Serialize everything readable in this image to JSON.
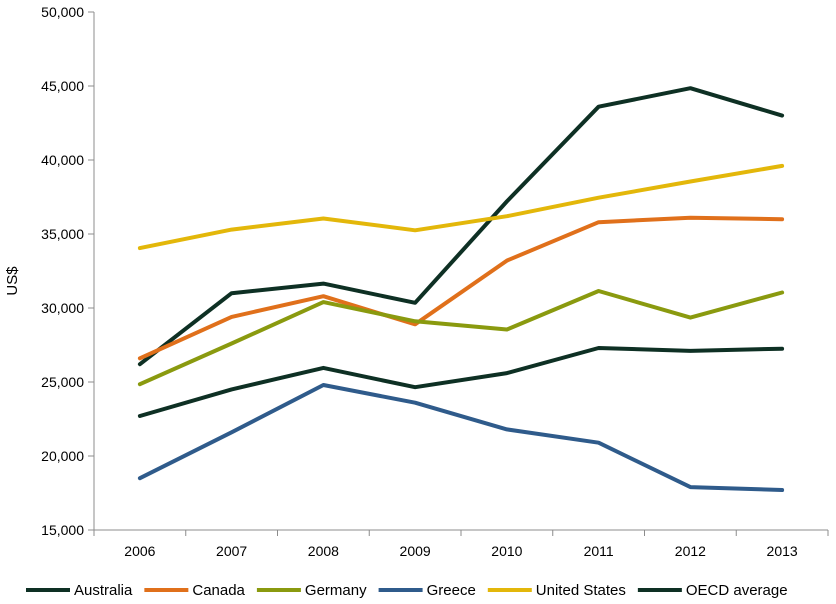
{
  "chart_data": {
    "type": "line",
    "title": "",
    "xlabel": "",
    "ylabel": "US$",
    "ylim": [
      15000,
      50000
    ],
    "yticks": [
      "15,000",
      "20,000",
      "25,000",
      "30,000",
      "35,000",
      "40,000",
      "45,000",
      "50,000"
    ],
    "categories": [
      "2006",
      "2007",
      "2008",
      "2009",
      "2010",
      "2011",
      "2012",
      "2013"
    ],
    "grid": false,
    "legend_position": "bottom",
    "series": [
      {
        "name": "Australia",
        "color": "#0e3024",
        "values": [
          26200,
          31000,
          31650,
          30350,
          37200,
          43600,
          44850,
          43000
        ]
      },
      {
        "name": "Canada",
        "color": "#e0701b",
        "values": [
          26600,
          29400,
          30800,
          28900,
          33200,
          35800,
          36100,
          36000
        ]
      },
      {
        "name": "Germany",
        "color": "#8a9a0f",
        "values": [
          24850,
          27600,
          30400,
          29100,
          28550,
          31150,
          29350,
          31050
        ]
      },
      {
        "name": "Greece",
        "color": "#2f5b8b",
        "values": [
          18500,
          21600,
          24800,
          23600,
          21800,
          20900,
          17900,
          17700
        ]
      },
      {
        "name": "United States",
        "color": "#e3b70a",
        "values": [
          34050,
          35300,
          36050,
          35250,
          36200,
          37450,
          38550,
          39600
        ]
      },
      {
        "name": "OECD average",
        "color": "#0e3024",
        "values": [
          22700,
          24500,
          25950,
          24650,
          25600,
          27300,
          27100,
          27250
        ]
      }
    ]
  }
}
